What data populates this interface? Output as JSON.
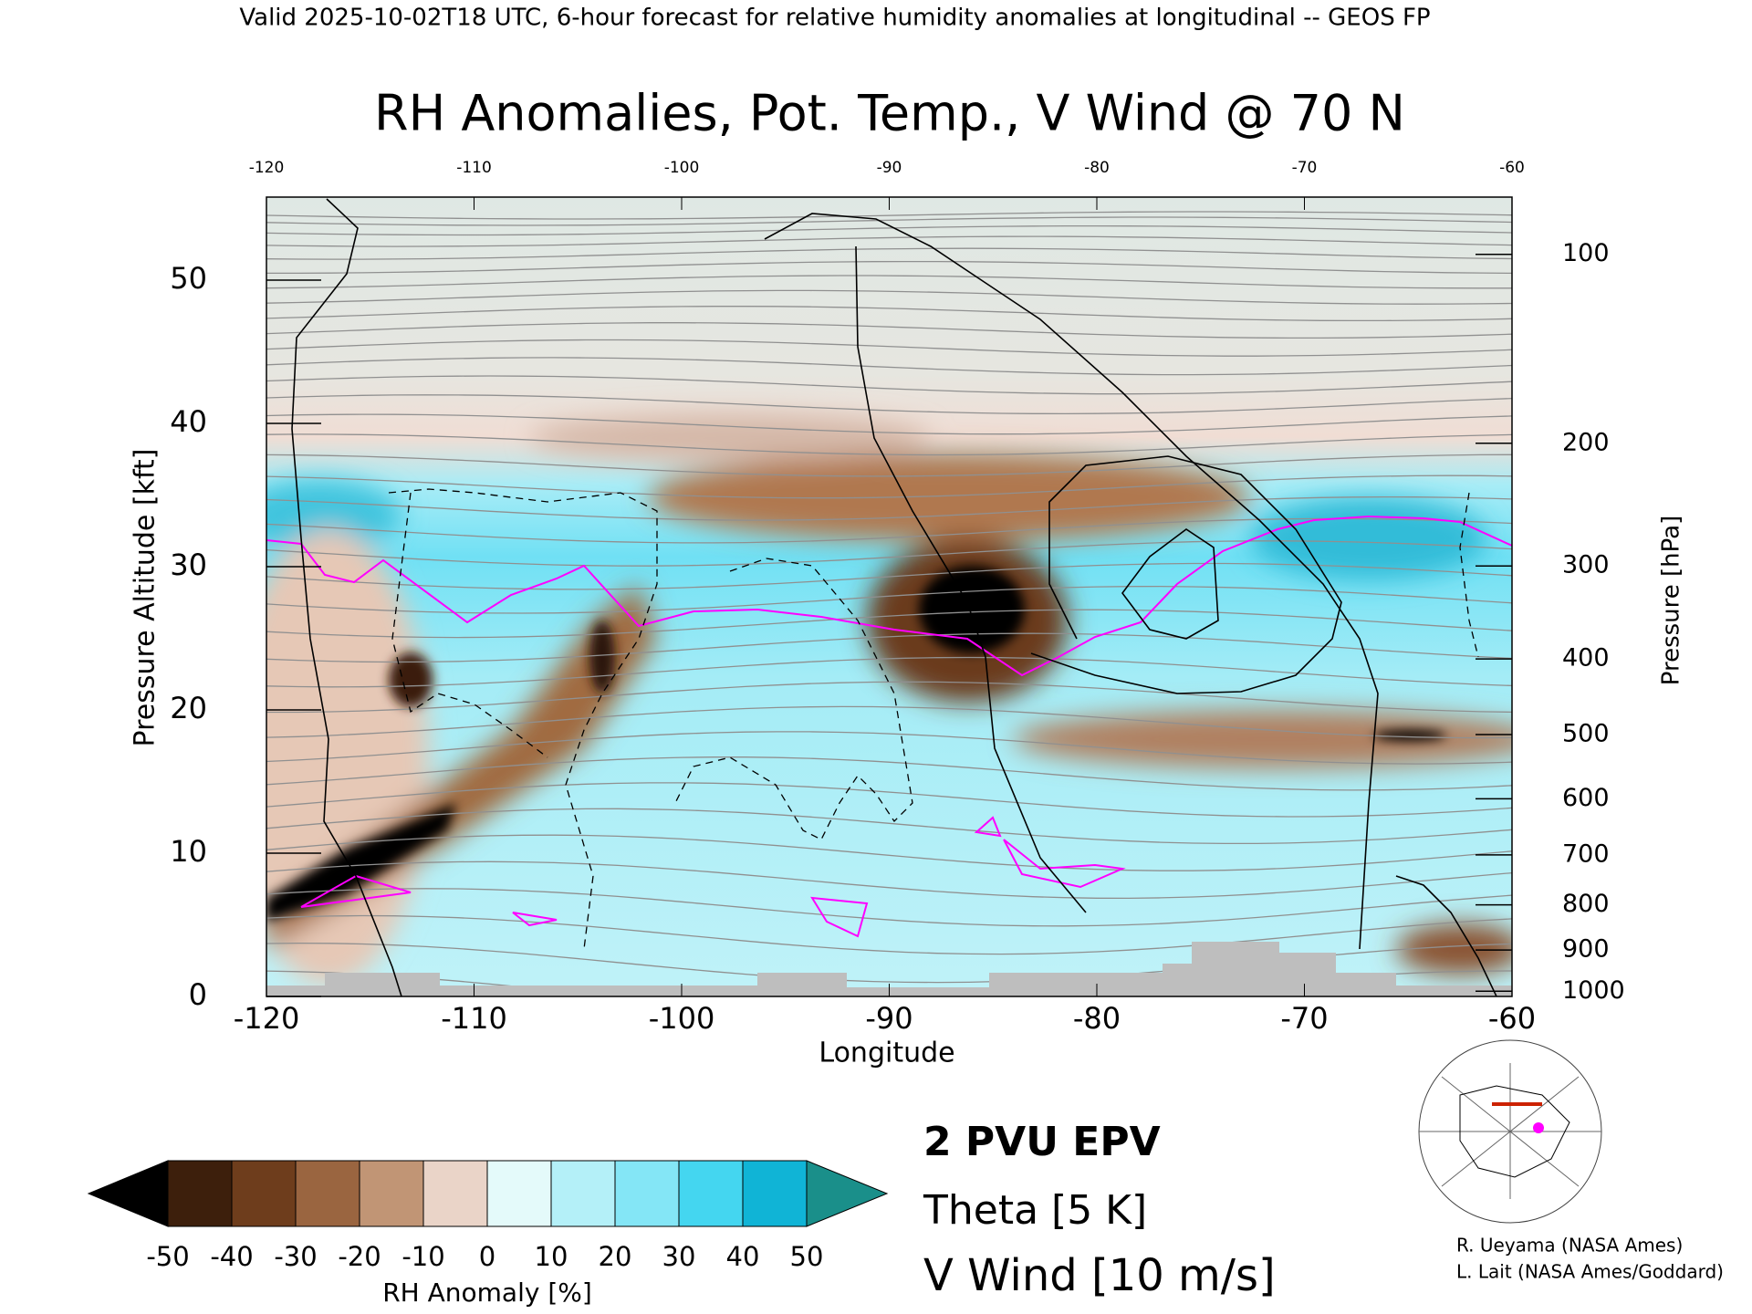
{
  "header": "Valid 2025-10-02T18 UTC, 6-hour forecast for relative humidity anomalies at longitudinal -- GEOS FP",
  "chart_data": {
    "type": "contour",
    "title": "RH Anomalies, Pot. Temp., V Wind @ 70 N",
    "x_label": "Longitude",
    "y_label": "Pressure Altitude [kft]",
    "y2_label": "Pressure [hPa]",
    "xlim": [
      -120,
      -60
    ],
    "xticks": [
      -120,
      -110,
      -100,
      -90,
      -80,
      -70,
      -60
    ],
    "ylim": [
      0,
      55.8
    ],
    "yticks": [
      0,
      10,
      20,
      30,
      40,
      50
    ],
    "y2ticks": [
      100,
      200,
      300,
      400,
      500,
      600,
      700,
      800,
      900,
      1000
    ],
    "y2_scale": "standard-atmosphere",
    "colorbar": {
      "label": "RH Anomaly [%]",
      "ticks": [
        -50,
        -40,
        -30,
        -20,
        -10,
        0,
        10,
        20,
        30,
        40,
        50
      ],
      "colors": [
        "#3d1f0c",
        "#6e3d1c",
        "#9a6540",
        "#c19575",
        "#ead4c8",
        "#e4fafa",
        "#b4f0f8",
        "#84e6f6",
        "#44d6f0",
        "#10b4d6"
      ],
      "extend_colors": [
        "#000000",
        "#1a8f8a"
      ]
    },
    "legend": [
      {
        "name": "2 PVU EPV",
        "color": "#ff00ff"
      },
      {
        "name": "Theta [5 K]",
        "color": "#b0b0b0"
      },
      {
        "name": "V Wind [10 m/s]",
        "color": "#000000"
      }
    ]
  },
  "credits": [
    "R. Ueyama (NASA Ames)",
    "L. Lait (NASA Ames/Goddard)"
  ]
}
